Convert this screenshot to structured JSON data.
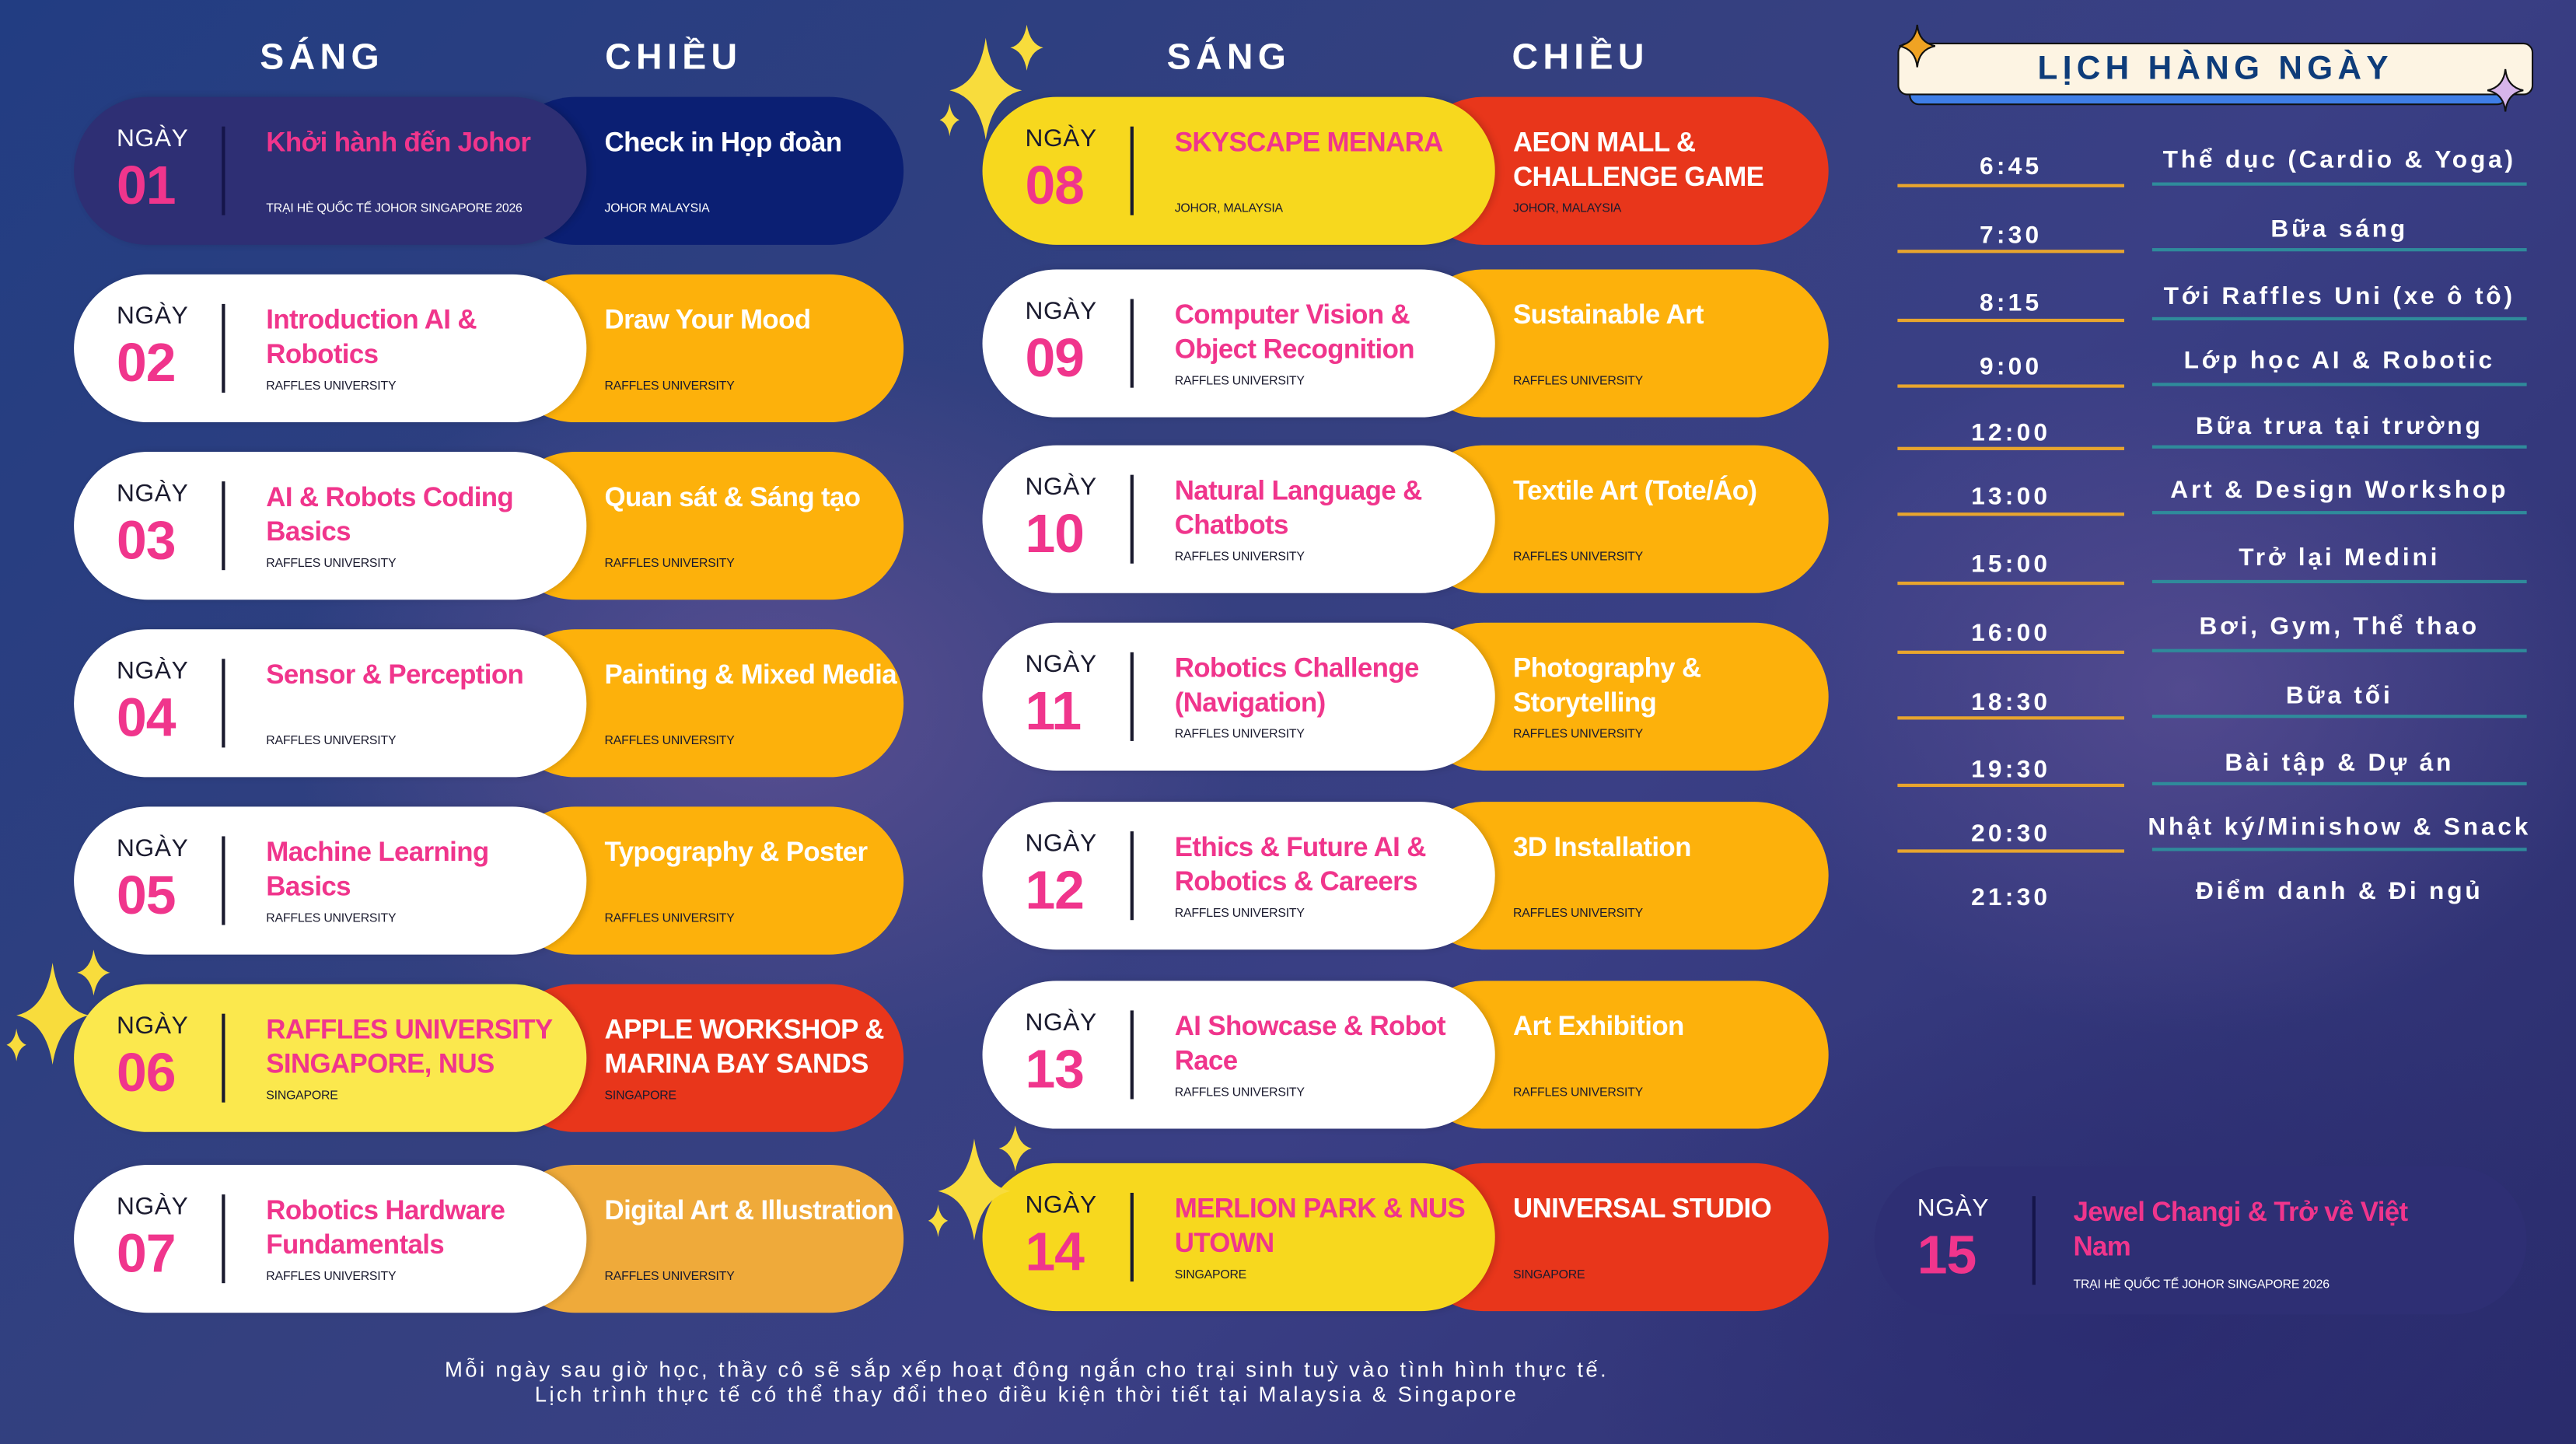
{
  "headers": {
    "left_morning": "SÁNG",
    "left_afternoon": "CHIỀU",
    "mid_morning": "SÁNG",
    "mid_afternoon": "CHIỀU"
  },
  "day_label": "NGÀY",
  "colors": {
    "pink": "#f0358c",
    "white": "#ffffff",
    "orange": "#fdb10b",
    "yellow": "#f7d81e",
    "light_yellow": "#fbe84d",
    "red": "#e8361b",
    "navy": "#2e2f74",
    "deep_navy": "#0b1f73",
    "amber": "#efaa3a"
  },
  "days": [
    {
      "day": "01",
      "morning": "Khởi hành đến Johor",
      "morning_sub": "TRẠI HÈ QUỐC TẾ JOHOR SINGAPORE 2026",
      "afternoon": "Check in Họp đoàn",
      "afternoon_sub": "JOHOR MALAYSIA",
      "left_color": "#2e2f74",
      "right_color": "#0b1f73",
      "dark": true
    },
    {
      "day": "02",
      "morning": "Introduction AI & Robotics",
      "morning_sub": "RAFFLES UNIVERSITY",
      "afternoon": "Draw Your Mood",
      "afternoon_sub": "RAFFLES UNIVERSITY",
      "left_color": "#ffffff",
      "right_color": "#fdb10b"
    },
    {
      "day": "03",
      "morning": "AI & Robots Coding Basics",
      "morning_sub": "RAFFLES UNIVERSITY",
      "afternoon": "Quan sát & Sáng tạo",
      "afternoon_sub": "RAFFLES UNIVERSITY",
      "left_color": "#ffffff",
      "right_color": "#fdb10b"
    },
    {
      "day": "04",
      "morning": "Sensor & Perception",
      "morning_sub": "RAFFLES UNIVERSITY",
      "afternoon": "Painting & Mixed Media",
      "afternoon_sub": "RAFFLES UNIVERSITY",
      "left_color": "#ffffff",
      "right_color": "#fdb10b"
    },
    {
      "day": "05",
      "morning": "Machine Learning Basics",
      "morning_sub": "RAFFLES UNIVERSITY",
      "afternoon": "Typography & Poster",
      "afternoon_sub": "RAFFLES UNIVERSITY",
      "left_color": "#ffffff",
      "right_color": "#fdb10b"
    },
    {
      "day": "06",
      "morning": "RAFFLES UNIVERSITY SINGAPORE, NUS",
      "morning_sub": "SINGAPORE",
      "afternoon": "APPLE WORKSHOP & MARINA BAY SANDS",
      "afternoon_sub": "SINGAPORE",
      "left_color": "#fbe84d",
      "right_color": "#e8361b"
    },
    {
      "day": "07",
      "morning": "Robotics Hardware Fundamentals",
      "morning_sub": "RAFFLES UNIVERSITY",
      "afternoon": "Digital Art & Illustration",
      "afternoon_sub": "RAFFLES UNIVERSITY",
      "left_color": "#ffffff",
      "right_color": "#efaa3a"
    },
    {
      "day": "08",
      "morning": "SKYSCAPE MENARA",
      "morning_sub": "JOHOR, MALAYSIA",
      "afternoon": "AEON MALL & CHALLENGE GAME",
      "afternoon_sub": "JOHOR, MALAYSIA",
      "left_color": "#f7d81e",
      "right_color": "#e8361b"
    },
    {
      "day": "09",
      "morning": "Computer Vision & Object Recognition",
      "morning_sub": "RAFFLES UNIVERSITY",
      "afternoon": "Sustainable Art",
      "afternoon_sub": "RAFFLES UNIVERSITY",
      "left_color": "#ffffff",
      "right_color": "#fdb10b"
    },
    {
      "day": "10",
      "morning": "Natural Language & Chatbots",
      "morning_sub": "RAFFLES UNIVERSITY",
      "afternoon": "Textile Art (Tote/Áo)",
      "afternoon_sub": "RAFFLES UNIVERSITY",
      "left_color": "#ffffff",
      "right_color": "#fdb10b"
    },
    {
      "day": "11",
      "morning": "Robotics Challenge (Navigation)",
      "morning_sub": "RAFFLES UNIVERSITY",
      "afternoon": "Photography & Storytelling",
      "afternoon_sub": "RAFFLES UNIVERSITY",
      "left_color": "#ffffff",
      "right_color": "#fdb10b"
    },
    {
      "day": "12",
      "morning": "Ethics & Future AI & Robotics & Careers",
      "morning_sub": "RAFFLES UNIVERSITY",
      "afternoon": "3D Installation",
      "afternoon_sub": "RAFFLES UNIVERSITY",
      "left_color": "#ffffff",
      "right_color": "#fdb10b"
    },
    {
      "day": "13",
      "morning": "AI Showcase & Robot Race",
      "morning_sub": "RAFFLES UNIVERSITY",
      "afternoon": "Art Exhibition",
      "afternoon_sub": "RAFFLES UNIVERSITY",
      "left_color": "#ffffff",
      "right_color": "#fdb10b"
    },
    {
      "day": "14",
      "morning": "MERLION PARK & NUS UTOWN",
      "morning_sub": "SINGAPORE",
      "afternoon": "UNIVERSAL STUDIO",
      "afternoon_sub": "SINGAPORE",
      "left_color": "#f7d81e",
      "right_color": "#e8361b"
    }
  ],
  "day15": {
    "day": "15",
    "title": "Jewel Changi & Trở về Việt Nam",
    "sub": "TRẠI HÈ QUỐC TẾ JOHOR SINGAPORE 2026",
    "color": "#2e2f74"
  },
  "daily": {
    "title": "LỊCH HÀNG NGÀY",
    "items": [
      {
        "time": "6:45",
        "activity": "Thể dục (Cardio & Yoga)"
      },
      {
        "time": "7:30",
        "activity": "Bữa sáng"
      },
      {
        "time": "8:15",
        "activity": "Tới Raffles Uni (xe ô tô)"
      },
      {
        "time": "9:00",
        "activity": "Lớp học AI & Robotic"
      },
      {
        "time": "12:00",
        "activity": "Bữa trưa tại trường"
      },
      {
        "time": "13:00",
        "activity": "Art & Design Workshop"
      },
      {
        "time": "15:00",
        "activity": "Trở lại Medini"
      },
      {
        "time": "16:00",
        "activity": "Bơi, Gym, Thể thao"
      },
      {
        "time": "18:30",
        "activity": "Bữa tối"
      },
      {
        "time": "19:30",
        "activity": "Bài tập & Dự án"
      },
      {
        "time": "20:30",
        "activity": "Nhật ký/Minishow & Snack"
      },
      {
        "time": "21:30",
        "activity": "Điểm danh & Đi ngủ"
      }
    ]
  },
  "footer": {
    "line1": "Mỗi ngày sau giờ học, thầy cô sẽ sắp xếp hoạt động ngắn cho trại sinh tuỳ vào tình hình thực tế.",
    "line2": "Lịch trình thực tế có thể thay đổi theo điều kiện thời tiết tại Malaysia & Singapore"
  }
}
